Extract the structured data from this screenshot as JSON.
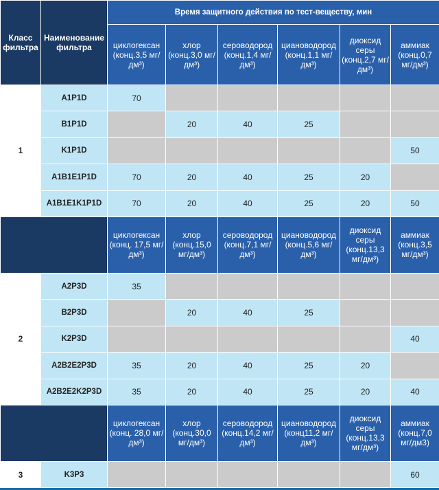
{
  "header": {
    "class_label": "Класс фильтра",
    "name_label": "Наименование фильтра",
    "group_title": "Время защитного действия по тест-веществу, мин"
  },
  "sections": [
    {
      "class": "1",
      "subheaders": [
        {
          "name": "циклогексан",
          "conc": "(конц.3,5 мг/дм³)"
        },
        {
          "name": "хлор",
          "conc": "(конц.3,0 мг/дм³)"
        },
        {
          "name": "сероводород",
          "conc": "(конц.1,4 мг/дм³)"
        },
        {
          "name": "циановодород",
          "conc": "(конц.1,1 мг/дм³)"
        },
        {
          "name": "диоксид серы",
          "conc": "(конц.2,7 мг/дм³)"
        },
        {
          "name": "аммиак",
          "conc": "(конц.0,7 мг/дм³)"
        }
      ],
      "rows": [
        {
          "name": "A1P1D",
          "values": [
            "70",
            "",
            "",
            "",
            "",
            ""
          ]
        },
        {
          "name": "B1P1D",
          "values": [
            "",
            "20",
            "40",
            "25",
            "",
            ""
          ]
        },
        {
          "name": "K1P1D",
          "values": [
            "",
            "",
            "",
            "",
            "",
            "50"
          ]
        },
        {
          "name": "A1B1E1P1D",
          "values": [
            "70",
            "20",
            "40",
            "25",
            "20",
            ""
          ]
        },
        {
          "name": "A1B1E1K1P1D",
          "values": [
            "70",
            "20",
            "40",
            "25",
            "20",
            "50"
          ]
        }
      ]
    },
    {
      "class": "2",
      "subheaders": [
        {
          "name": "циклогексан",
          "conc": "(конц. 17,5 мг/дм³)"
        },
        {
          "name": "хлор",
          "conc": "(конц.15,0 мг/дм³)"
        },
        {
          "name": "сероводород",
          "conc": "(конц.7,1 мг/дм³)"
        },
        {
          "name": "циановодород",
          "conc": "(конц.5,6 мг/дм³)"
        },
        {
          "name": "диоксид серы",
          "conc": "(конц.13,3 мг/дм³)"
        },
        {
          "name": "аммиак",
          "conc": "(конц.3,5 мг/дм³)"
        }
      ],
      "rows": [
        {
          "name": "A2P3D",
          "values": [
            "35",
            "",
            "",
            "",
            "",
            ""
          ]
        },
        {
          "name": "B2P3D",
          "values": [
            "",
            "20",
            "40",
            "25",
            "",
            ""
          ]
        },
        {
          "name": "K2P3D",
          "values": [
            "",
            "",
            "",
            "",
            "",
            "40"
          ]
        },
        {
          "name": "A2B2E2P3D",
          "values": [
            "35",
            "20",
            "40",
            "25",
            "20",
            ""
          ]
        },
        {
          "name": "A2B2E2K2P3D",
          "values": [
            "35",
            "20",
            "40",
            "25",
            "20",
            "40"
          ]
        }
      ]
    },
    {
      "class": "3",
      "subheaders": [
        {
          "name": "циклогексан",
          "conc": "(конц. 28,0 мг/дм³)"
        },
        {
          "name": "хлор",
          "conc": "(конц.30,0 мг/дм³)"
        },
        {
          "name": "сероводород",
          "conc": "(конц.14,2 мг/дм³)"
        },
        {
          "name": "циановодород",
          "conc": "(конц11,2 мг/дм³)"
        },
        {
          "name": "диоксид серы",
          "conc": "(конц.13,3 мг/дм³)"
        },
        {
          "name": "аммиак",
          "conc": "(конц.7,0 мг/дм3)"
        }
      ],
      "rows": [
        {
          "name": "K3P3",
          "values": [
            "",
            "",
            "",
            "",
            "",
            "60"
          ]
        }
      ]
    }
  ],
  "colors": {
    "header_dark": "#1b3a63",
    "header_blue": "#2a60aa",
    "cell_light": "#c0e5f5",
    "cell_gray": "#cbcbcb"
  }
}
